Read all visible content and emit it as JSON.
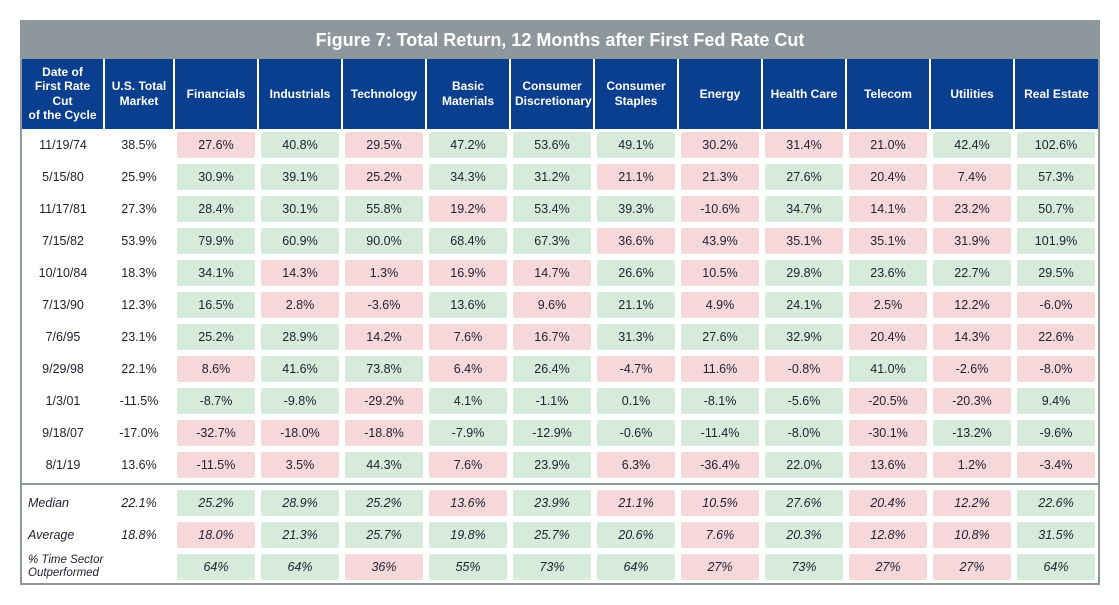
{
  "title": "Figure 7: Total Return, 12 Months after First Fed Rate Cut",
  "columns": [
    "Date of First Rate Cut of the Cycle",
    "U.S. Total Market",
    "Financials",
    "Industrials",
    "Technology",
    "Basic Materials",
    "Consumer Discretionary",
    "Consumer Staples",
    "Energy",
    "Health Care",
    "Telecom",
    "Utilities",
    "Real Estate"
  ],
  "rows": [
    {
      "date": "11/19/74",
      "mkt": "38.5%",
      "cells": [
        {
          "v": "27.6%",
          "c": "neg"
        },
        {
          "v": "40.8%",
          "c": "pos"
        },
        {
          "v": "29.5%",
          "c": "neg"
        },
        {
          "v": "47.2%",
          "c": "pos"
        },
        {
          "v": "53.6%",
          "c": "pos"
        },
        {
          "v": "49.1%",
          "c": "pos"
        },
        {
          "v": "30.2%",
          "c": "neg"
        },
        {
          "v": "31.4%",
          "c": "neg"
        },
        {
          "v": "21.0%",
          "c": "neg"
        },
        {
          "v": "42.4%",
          "c": "pos"
        },
        {
          "v": "102.6%",
          "c": "pos"
        }
      ]
    },
    {
      "date": "5/15/80",
      "mkt": "25.9%",
      "cells": [
        {
          "v": "30.9%",
          "c": "pos"
        },
        {
          "v": "39.1%",
          "c": "pos"
        },
        {
          "v": "25.2%",
          "c": "neg"
        },
        {
          "v": "34.3%",
          "c": "pos"
        },
        {
          "v": "31.2%",
          "c": "pos"
        },
        {
          "v": "21.1%",
          "c": "neg"
        },
        {
          "v": "21.3%",
          "c": "neg"
        },
        {
          "v": "27.6%",
          "c": "pos"
        },
        {
          "v": "20.4%",
          "c": "neg"
        },
        {
          "v": "7.4%",
          "c": "neg"
        },
        {
          "v": "57.3%",
          "c": "pos"
        }
      ]
    },
    {
      "date": "11/17/81",
      "mkt": "27.3%",
      "cells": [
        {
          "v": "28.4%",
          "c": "pos"
        },
        {
          "v": "30.1%",
          "c": "pos"
        },
        {
          "v": "55.8%",
          "c": "pos"
        },
        {
          "v": "19.2%",
          "c": "neg"
        },
        {
          "v": "53.4%",
          "c": "pos"
        },
        {
          "v": "39.3%",
          "c": "pos"
        },
        {
          "v": "-10.6%",
          "c": "neg"
        },
        {
          "v": "34.7%",
          "c": "pos"
        },
        {
          "v": "14.1%",
          "c": "neg"
        },
        {
          "v": "23.2%",
          "c": "neg"
        },
        {
          "v": "50.7%",
          "c": "pos"
        }
      ]
    },
    {
      "date": "7/15/82",
      "mkt": "53.9%",
      "cells": [
        {
          "v": "79.9%",
          "c": "pos"
        },
        {
          "v": "60.9%",
          "c": "pos"
        },
        {
          "v": "90.0%",
          "c": "pos"
        },
        {
          "v": "68.4%",
          "c": "pos"
        },
        {
          "v": "67.3%",
          "c": "pos"
        },
        {
          "v": "36.6%",
          "c": "neg"
        },
        {
          "v": "43.9%",
          "c": "neg"
        },
        {
          "v": "35.1%",
          "c": "neg"
        },
        {
          "v": "35.1%",
          "c": "neg"
        },
        {
          "v": "31.9%",
          "c": "neg"
        },
        {
          "v": "101.9%",
          "c": "pos"
        }
      ]
    },
    {
      "date": "10/10/84",
      "mkt": "18.3%",
      "cells": [
        {
          "v": "34.1%",
          "c": "pos"
        },
        {
          "v": "14.3%",
          "c": "neg"
        },
        {
          "v": "1.3%",
          "c": "neg"
        },
        {
          "v": "16.9%",
          "c": "neg"
        },
        {
          "v": "14.7%",
          "c": "neg"
        },
        {
          "v": "26.6%",
          "c": "pos"
        },
        {
          "v": "10.5%",
          "c": "neg"
        },
        {
          "v": "29.8%",
          "c": "pos"
        },
        {
          "v": "23.6%",
          "c": "pos"
        },
        {
          "v": "22.7%",
          "c": "pos"
        },
        {
          "v": "29.5%",
          "c": "pos"
        }
      ]
    },
    {
      "date": "7/13/90",
      "mkt": "12.3%",
      "cells": [
        {
          "v": "16.5%",
          "c": "pos"
        },
        {
          "v": "2.8%",
          "c": "neg"
        },
        {
          "v": "-3.6%",
          "c": "neg"
        },
        {
          "v": "13.6%",
          "c": "pos"
        },
        {
          "v": "9.6%",
          "c": "neg"
        },
        {
          "v": "21.1%",
          "c": "pos"
        },
        {
          "v": "4.9%",
          "c": "neg"
        },
        {
          "v": "24.1%",
          "c": "pos"
        },
        {
          "v": "2.5%",
          "c": "neg"
        },
        {
          "v": "12.2%",
          "c": "neg"
        },
        {
          "v": "-6.0%",
          "c": "neg"
        }
      ]
    },
    {
      "date": "7/6/95",
      "mkt": "23.1%",
      "cells": [
        {
          "v": "25.2%",
          "c": "pos"
        },
        {
          "v": "28.9%",
          "c": "pos"
        },
        {
          "v": "14.2%",
          "c": "neg"
        },
        {
          "v": "7.6%",
          "c": "neg"
        },
        {
          "v": "16.7%",
          "c": "neg"
        },
        {
          "v": "31.3%",
          "c": "pos"
        },
        {
          "v": "27.6%",
          "c": "pos"
        },
        {
          "v": "32.9%",
          "c": "pos"
        },
        {
          "v": "20.4%",
          "c": "neg"
        },
        {
          "v": "14.3%",
          "c": "neg"
        },
        {
          "v": "22.6%",
          "c": "neg"
        }
      ]
    },
    {
      "date": "9/29/98",
      "mkt": "22.1%",
      "cells": [
        {
          "v": "8.6%",
          "c": "neg"
        },
        {
          "v": "41.6%",
          "c": "pos"
        },
        {
          "v": "73.8%",
          "c": "pos"
        },
        {
          "v": "6.4%",
          "c": "neg"
        },
        {
          "v": "26.4%",
          "c": "pos"
        },
        {
          "v": "-4.7%",
          "c": "neg"
        },
        {
          "v": "11.6%",
          "c": "neg"
        },
        {
          "v": "-0.8%",
          "c": "neg"
        },
        {
          "v": "41.0%",
          "c": "pos"
        },
        {
          "v": "-2.6%",
          "c": "neg"
        },
        {
          "v": "-8.0%",
          "c": "neg"
        }
      ]
    },
    {
      "date": "1/3/01",
      "mkt": "-11.5%",
      "cells": [
        {
          "v": "-8.7%",
          "c": "pos"
        },
        {
          "v": "-9.8%",
          "c": "pos"
        },
        {
          "v": "-29.2%",
          "c": "neg"
        },
        {
          "v": "4.1%",
          "c": "pos"
        },
        {
          "v": "-1.1%",
          "c": "pos"
        },
        {
          "v": "0.1%",
          "c": "pos"
        },
        {
          "v": "-8.1%",
          "c": "pos"
        },
        {
          "v": "-5.6%",
          "c": "pos"
        },
        {
          "v": "-20.5%",
          "c": "neg"
        },
        {
          "v": "-20.3%",
          "c": "neg"
        },
        {
          "v": "9.4%",
          "c": "pos"
        }
      ]
    },
    {
      "date": "9/18/07",
      "mkt": "-17.0%",
      "cells": [
        {
          "v": "-32.7%",
          "c": "neg"
        },
        {
          "v": "-18.0%",
          "c": "neg"
        },
        {
          "v": "-18.8%",
          "c": "neg"
        },
        {
          "v": "-7.9%",
          "c": "pos"
        },
        {
          "v": "-12.9%",
          "c": "pos"
        },
        {
          "v": "-0.6%",
          "c": "pos"
        },
        {
          "v": "-11.4%",
          "c": "pos"
        },
        {
          "v": "-8.0%",
          "c": "pos"
        },
        {
          "v": "-30.1%",
          "c": "neg"
        },
        {
          "v": "-13.2%",
          "c": "pos"
        },
        {
          "v": "-9.6%",
          "c": "pos"
        }
      ]
    },
    {
      "date": "8/1/19",
      "mkt": "13.6%",
      "cells": [
        {
          "v": "-11.5%",
          "c": "neg"
        },
        {
          "v": "3.5%",
          "c": "neg"
        },
        {
          "v": "44.3%",
          "c": "pos"
        },
        {
          "v": "7.6%",
          "c": "neg"
        },
        {
          "v": "23.9%",
          "c": "pos"
        },
        {
          "v": "6.3%",
          "c": "neg"
        },
        {
          "v": "-36.4%",
          "c": "neg"
        },
        {
          "v": "22.0%",
          "c": "pos"
        },
        {
          "v": "13.6%",
          "c": "neg"
        },
        {
          "v": "1.2%",
          "c": "neg"
        },
        {
          "v": "-3.4%",
          "c": "neg"
        }
      ]
    }
  ],
  "summary": [
    {
      "label": "Median",
      "mkt": "22.1%",
      "cells": [
        {
          "v": "25.2%",
          "c": "pos"
        },
        {
          "v": "28.9%",
          "c": "pos"
        },
        {
          "v": "25.2%",
          "c": "pos"
        },
        {
          "v": "13.6%",
          "c": "neg"
        },
        {
          "v": "23.9%",
          "c": "pos"
        },
        {
          "v": "21.1%",
          "c": "neg"
        },
        {
          "v": "10.5%",
          "c": "neg"
        },
        {
          "v": "27.6%",
          "c": "pos"
        },
        {
          "v": "20.4%",
          "c": "neg"
        },
        {
          "v": "12.2%",
          "c": "neg"
        },
        {
          "v": "22.6%",
          "c": "pos"
        }
      ]
    },
    {
      "label": "Average",
      "mkt": "18.8%",
      "cells": [
        {
          "v": "18.0%",
          "c": "neg"
        },
        {
          "v": "21.3%",
          "c": "pos"
        },
        {
          "v": "25.7%",
          "c": "pos"
        },
        {
          "v": "19.8%",
          "c": "pos"
        },
        {
          "v": "25.7%",
          "c": "pos"
        },
        {
          "v": "20.6%",
          "c": "pos"
        },
        {
          "v": "7.6%",
          "c": "neg"
        },
        {
          "v": "20.3%",
          "c": "pos"
        },
        {
          "v": "12.8%",
          "c": "neg"
        },
        {
          "v": "10.8%",
          "c": "neg"
        },
        {
          "v": "31.5%",
          "c": "pos"
        }
      ]
    }
  ],
  "outperform": {
    "label": "% Time Sector Outperformed",
    "mkt": "",
    "cells": [
      {
        "v": "64%",
        "c": "pos"
      },
      {
        "v": "64%",
        "c": "pos"
      },
      {
        "v": "36%",
        "c": "neg"
      },
      {
        "v": "55%",
        "c": "pos"
      },
      {
        "v": "73%",
        "c": "pos"
      },
      {
        "v": "64%",
        "c": "pos"
      },
      {
        "v": "27%",
        "c": "neg"
      },
      {
        "v": "73%",
        "c": "pos"
      },
      {
        "v": "27%",
        "c": "neg"
      },
      {
        "v": "27%",
        "c": "neg"
      },
      {
        "v": "64%",
        "c": "pos"
      }
    ]
  },
  "colors": {
    "header_bg": "#0a3e8f",
    "title_bg": "#8f979e",
    "pos_bg": "#d6ebd9",
    "neg_bg": "#f6d7da"
  }
}
